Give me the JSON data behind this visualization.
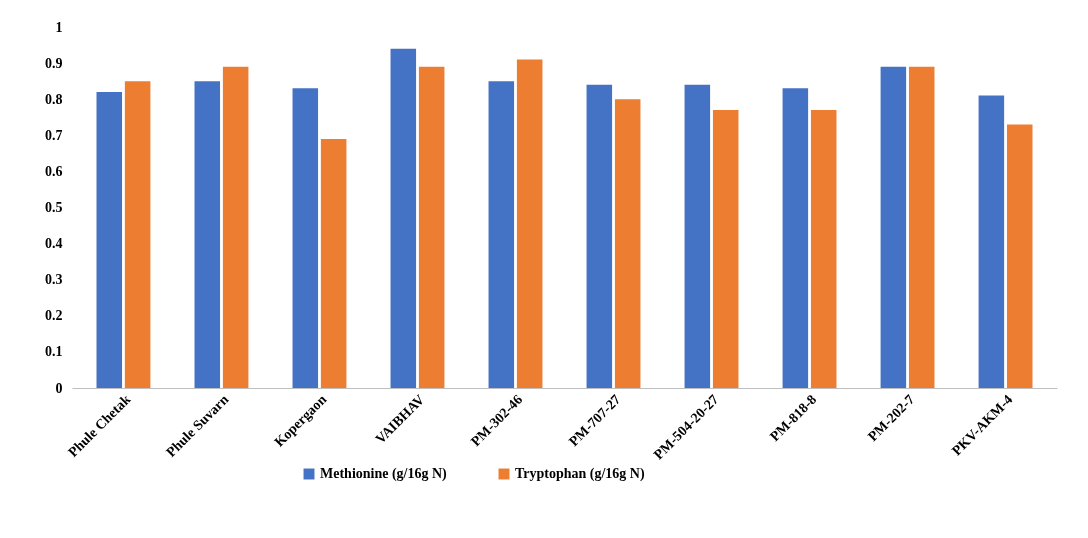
{
  "chart_data": {
    "type": "bar",
    "categories": [
      "Phule Chetak",
      "Phule Suvarn",
      "Kopergaon",
      "VAIBHAV",
      "PM-302-46",
      "PM-707-27",
      "PM-504-20-27",
      "PM-818-8",
      "PM-202-7",
      "PKV-AKM-4"
    ],
    "series": [
      {
        "name": "Methionine (g/16g N)",
        "color": "#4472c4",
        "values": [
          0.82,
          0.85,
          0.83,
          0.94,
          0.85,
          0.84,
          0.84,
          0.83,
          0.89,
          0.81
        ]
      },
      {
        "name": "Tryptophan (g/16g N)",
        "color": "#ed7d31",
        "values": [
          0.85,
          0.89,
          0.69,
          0.89,
          0.91,
          0.8,
          0.77,
          0.77,
          0.89,
          0.73
        ]
      }
    ],
    "ylim": [
      0,
      1
    ],
    "yticks": [
      0,
      0.1,
      0.2,
      0.3,
      0.4,
      0.5,
      0.6,
      0.7,
      0.8,
      0.9,
      1
    ],
    "grid": false,
    "legend": "bottom"
  }
}
